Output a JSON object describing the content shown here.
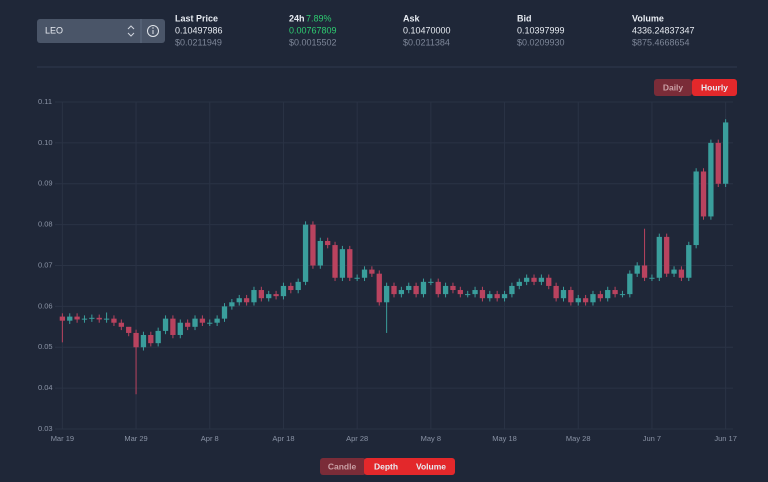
{
  "header": {
    "pair": "LEO",
    "stats": [
      {
        "label": "Last Price",
        "value": "0.10497986",
        "usd": "$0.0211949"
      },
      {
        "label": "24h",
        "change": "7.89%",
        "value": "0.00767809",
        "usd": "$0.0015502"
      },
      {
        "label": "Ask",
        "value": "0.10470000",
        "usd": "$0.0211384"
      },
      {
        "label": "Bid",
        "value": "0.10397999",
        "usd": "$0.0209930"
      },
      {
        "label": "Volume",
        "value": "4336.24837347",
        "usd": "$875.4668654"
      }
    ]
  },
  "interval_toggle": [
    "Daily",
    "Hourly"
  ],
  "view_toggle": [
    "Candle",
    "Depth",
    "Volume"
  ],
  "chart_data": {
    "type": "candlestick",
    "categories": [
      "Mar 19",
      null,
      null,
      null,
      null,
      null,
      null,
      null,
      null,
      null,
      "Mar 29",
      null,
      null,
      null,
      null,
      null,
      null,
      null,
      null,
      null,
      "Apr 8",
      null,
      null,
      null,
      null,
      null,
      null,
      null,
      null,
      null,
      "Apr 18",
      null,
      null,
      null,
      null,
      null,
      null,
      null,
      null,
      null,
      "Apr 28",
      null,
      null,
      null,
      null,
      null,
      null,
      null,
      null,
      null,
      "May 8",
      null,
      null,
      null,
      null,
      null,
      null,
      null,
      null,
      null,
      "May 18",
      null,
      null,
      null,
      null,
      null,
      null,
      null,
      null,
      null,
      "May 28",
      null,
      null,
      null,
      null,
      null,
      null,
      null,
      null,
      null,
      "Jun 7",
      null,
      null,
      null,
      null,
      null,
      null,
      null,
      null,
      null,
      "Jun 17"
    ],
    "open": [
      0.0575,
      0.0565,
      0.0575,
      0.0568,
      0.057,
      0.0572,
      0.0568,
      0.057,
      0.056,
      0.055,
      0.0535,
      0.05,
      0.053,
      0.051,
      0.054,
      0.057,
      0.053,
      0.056,
      0.055,
      0.057,
      0.056,
      0.056,
      0.057,
      0.06,
      0.061,
      0.062,
      0.061,
      0.064,
      0.062,
      0.063,
      0.0625,
      0.065,
      0.064,
      0.066,
      0.08,
      0.07,
      0.076,
      0.075,
      0.067,
      0.074,
      0.067,
      0.067,
      0.069,
      0.068,
      0.061,
      0.065,
      0.063,
      0.064,
      0.065,
      0.063,
      0.066,
      0.066,
      0.063,
      0.065,
      0.064,
      0.063,
      0.063,
      0.064,
      0.062,
      0.063,
      0.062,
      0.063,
      0.065,
      0.066,
      0.067,
      0.066,
      0.067,
      0.065,
      0.062,
      0.064,
      0.061,
      0.062,
      0.061,
      0.063,
      0.062,
      0.064,
      0.063,
      0.063,
      0.068,
      0.07,
      0.067,
      0.067,
      0.077,
      0.068,
      0.069,
      0.067,
      0.075,
      0.093,
      0.082,
      0.1,
      0.09
    ],
    "high": [
      0.0583,
      0.0583,
      0.0583,
      0.0578,
      0.058,
      0.058,
      0.0585,
      0.0578,
      0.0568,
      0.0543,
      0.0543,
      0.0538,
      0.0538,
      0.0548,
      0.0578,
      0.0578,
      0.0568,
      0.0568,
      0.0578,
      0.0578,
      0.0568,
      0.0578,
      0.0608,
      0.0618,
      0.0628,
      0.0628,
      0.0648,
      0.0648,
      0.0638,
      0.0638,
      0.0658,
      0.0658,
      0.0668,
      0.0808,
      0.0808,
      0.0768,
      0.0768,
      0.0758,
      0.0748,
      0.0748,
      0.0678,
      0.0698,
      0.0698,
      0.0688,
      0.0658,
      0.0658,
      0.0648,
      0.0658,
      0.0658,
      0.0668,
      0.0668,
      0.0668,
      0.0658,
      0.0658,
      0.0648,
      0.0638,
      0.0648,
      0.0648,
      0.0638,
      0.0638,
      0.0638,
      0.0658,
      0.0668,
      0.0678,
      0.0678,
      0.0678,
      0.0678,
      0.0658,
      0.0648,
      0.0648,
      0.0628,
      0.0628,
      0.0638,
      0.0638,
      0.0648,
      0.0648,
      0.0638,
      0.0688,
      0.0708,
      0.079,
      0.0678,
      0.0778,
      0.0778,
      0.0698,
      0.0698,
      0.0758,
      0.0938,
      0.0938,
      0.1008,
      0.1008,
      0.1058
    ],
    "low": [
      0.0512,
      0.0557,
      0.056,
      0.056,
      0.0562,
      0.056,
      0.056,
      0.0552,
      0.0542,
      0.0527,
      0.0385,
      0.0492,
      0.0502,
      0.0502,
      0.0532,
      0.0522,
      0.0522,
      0.0542,
      0.0542,
      0.0552,
      0.0552,
      0.0552,
      0.0562,
      0.0592,
      0.0602,
      0.0602,
      0.0602,
      0.0612,
      0.0612,
      0.0617,
      0.0617,
      0.0632,
      0.0632,
      0.0652,
      0.0692,
      0.0692,
      0.0742,
      0.0662,
      0.0662,
      0.0662,
      0.0662,
      0.0662,
      0.0672,
      0.0602,
      0.0535,
      0.0622,
      0.0622,
      0.0632,
      0.0622,
      0.0622,
      0.0652,
      0.0622,
      0.0622,
      0.0632,
      0.0622,
      0.0622,
      0.0622,
      0.0612,
      0.0612,
      0.0612,
      0.0612,
      0.0622,
      0.0642,
      0.0652,
      0.0652,
      0.0652,
      0.0642,
      0.0612,
      0.0612,
      0.0602,
      0.0602,
      0.0602,
      0.0602,
      0.0612,
      0.0612,
      0.0622,
      0.0622,
      0.0622,
      0.0672,
      0.0662,
      0.0662,
      0.0662,
      0.0672,
      0.0672,
      0.0662,
      0.0662,
      0.0742,
      0.0812,
      0.0812,
      0.0892,
      0.0892
    ],
    "close": [
      0.0565,
      0.0575,
      0.0568,
      0.057,
      0.0572,
      0.0568,
      0.057,
      0.056,
      0.055,
      0.0535,
      0.05,
      0.053,
      0.051,
      0.054,
      0.057,
      0.053,
      0.056,
      0.055,
      0.057,
      0.056,
      0.056,
      0.057,
      0.06,
      0.061,
      0.062,
      0.061,
      0.064,
      0.062,
      0.063,
      0.0625,
      0.065,
      0.064,
      0.066,
      0.08,
      0.07,
      0.076,
      0.075,
      0.067,
      0.074,
      0.067,
      0.067,
      0.069,
      0.068,
      0.061,
      0.065,
      0.063,
      0.064,
      0.065,
      0.063,
      0.066,
      0.066,
      0.063,
      0.065,
      0.064,
      0.063,
      0.063,
      0.064,
      0.062,
      0.063,
      0.062,
      0.063,
      0.065,
      0.066,
      0.067,
      0.066,
      0.067,
      0.065,
      0.062,
      0.064,
      0.061,
      0.062,
      0.061,
      0.063,
      0.062,
      0.064,
      0.063,
      0.063,
      0.068,
      0.07,
      0.067,
      0.067,
      0.077,
      0.068,
      0.069,
      0.067,
      0.075,
      0.093,
      0.082,
      0.1,
      0.09,
      0.105
    ],
    "up_color": "#3a9e9c",
    "down_color": "#b9435f",
    "ylim": [
      0.03,
      0.11
    ],
    "yticks": [
      0.03,
      0.04,
      0.05,
      0.06,
      0.07,
      0.08,
      0.09,
      {
        "value": 0.1,
        "label": "0.10"
      },
      0.11
    ],
    "grid": true
  }
}
